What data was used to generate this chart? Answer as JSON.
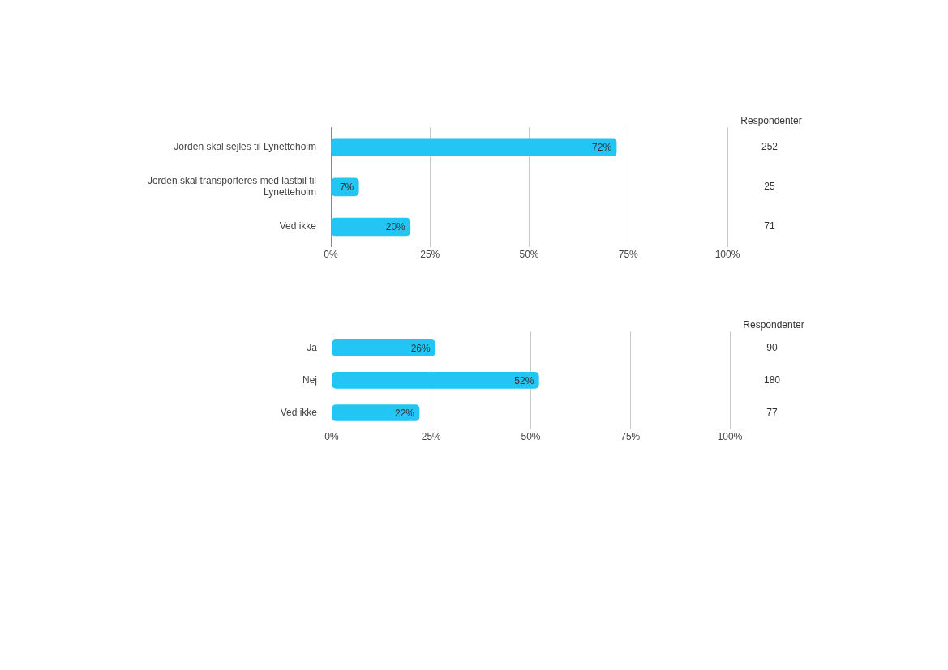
{
  "chart_data": [
    {
      "type": "bar",
      "orientation": "horizontal",
      "categories": [
        "Jorden skal sejles til Lynetteholm",
        "Jorden skal transporteres med lastbil til Lynetteholm",
        "Ved ikke"
      ],
      "values": [
        72,
        7,
        20
      ],
      "value_labels": [
        "72%",
        "7%",
        "20%"
      ],
      "color": "#22c5f3",
      "xlim": [
        0,
        100
      ],
      "xticks": [
        {
          "value": 0,
          "label": "0%"
        },
        {
          "value": 25,
          "label": "25%"
        },
        {
          "value": 50,
          "label": "50%"
        },
        {
          "value": 75,
          "label": "75%"
        },
        {
          "value": 100,
          "label": "100%"
        }
      ],
      "grid": "x",
      "legend": false,
      "annotations": [
        "Respondenter",
        "252",
        "25",
        "71"
      ]
    },
    {
      "type": "bar",
      "orientation": "horizontal",
      "categories": [
        "Ja",
        "Nej",
        "Ved ikke"
      ],
      "values": [
        26,
        52,
        22
      ],
      "value_labels": [
        "26%",
        "52%",
        "22%"
      ],
      "color": "#22c5f3",
      "xlim": [
        0,
        100
      ],
      "xticks": [
        {
          "value": 0,
          "label": "0%"
        },
        {
          "value": 25,
          "label": "25%"
        },
        {
          "value": 50,
          "label": "50%"
        },
        {
          "value": 75,
          "label": "75%"
        },
        {
          "value": 100,
          "label": "100%"
        }
      ],
      "grid": "x",
      "legend": false,
      "annotations": [
        "Respondenter",
        "90",
        "180",
        "77"
      ]
    }
  ]
}
